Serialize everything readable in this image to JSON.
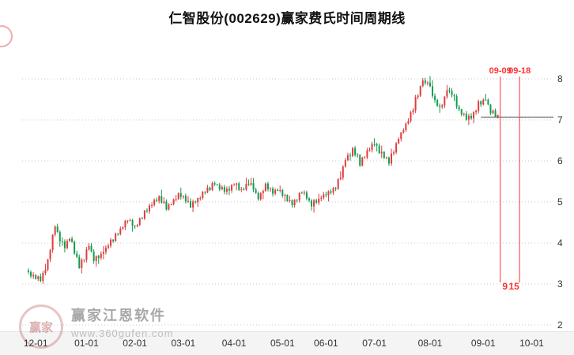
{
  "title": "仁智股份(002629)赢家费氏时间周期线",
  "watermark": {
    "brand": "赢家江恩软件",
    "url": "www.360gufen.com",
    "logo_text": "赢家"
  },
  "colors": {
    "up": "#e03c3c",
    "down": "#0f9d4e",
    "grid": "#c9c9c9",
    "fib": "#ff3232",
    "price_line": "#4a4a4a",
    "axis_text": "#333333",
    "title": "#111111"
  },
  "chart_data": {
    "type": "candlestick",
    "title": "仁智股份(002629)赢家费氏时间周期线",
    "xlabel": "",
    "ylabel": "",
    "y_axis_side": "right",
    "grid": "dotted-horizontal",
    "legend": "none",
    "y_ticks": [
      8,
      7,
      6,
      5,
      4,
      3,
      2
    ],
    "y_range": [
      1.94,
      9.06
    ],
    "n": 195,
    "x_ticks": [
      {
        "label": "12-01",
        "i": 3
      },
      {
        "label": "01-01",
        "i": 24
      },
      {
        "label": "02-01",
        "i": 44
      },
      {
        "label": "03-01",
        "i": 64
      },
      {
        "label": "04-01",
        "i": 85
      },
      {
        "label": "05-01",
        "i": 105
      },
      {
        "label": "06-01",
        "i": 123
      },
      {
        "label": "07-01",
        "i": 143
      },
      {
        "label": "08-01",
        "i": 166
      },
      {
        "label": "09-01",
        "i": 188
      },
      {
        "label": "10-01",
        "i": 208
      }
    ],
    "close_anchors": [
      [
        0,
        3.28
      ],
      [
        2,
        3.18
      ],
      [
        5,
        3.1
      ],
      [
        8,
        3.55
      ],
      [
        11,
        4.45
      ],
      [
        13,
        4.05
      ],
      [
        15,
        3.92
      ],
      [
        17,
        4.15
      ],
      [
        19,
        3.8
      ],
      [
        21,
        3.42
      ],
      [
        23,
        3.65
      ],
      [
        25,
        3.96
      ],
      [
        27,
        3.6
      ],
      [
        30,
        3.72
      ],
      [
        33,
        3.95
      ],
      [
        36,
        4.18
      ],
      [
        39,
        4.4
      ],
      [
        41,
        4.58
      ],
      [
        44,
        4.38
      ],
      [
        47,
        4.65
      ],
      [
        50,
        4.88
      ],
      [
        54,
        5.1
      ],
      [
        57,
        4.88
      ],
      [
        60,
        5.02
      ],
      [
        62,
        5.18
      ],
      [
        65,
        5.05
      ],
      [
        67,
        4.93
      ],
      [
        70,
        5.08
      ],
      [
        72,
        5.22
      ],
      [
        75,
        5.35
      ],
      [
        77,
        5.46
      ],
      [
        79,
        5.36
      ],
      [
        81,
        5.26
      ],
      [
        83,
        5.32
      ],
      [
        85,
        5.45
      ],
      [
        87,
        5.35
      ],
      [
        88,
        5.25
      ],
      [
        90,
        5.4
      ],
      [
        91,
        5.48
      ],
      [
        93,
        5.32
      ],
      [
        95,
        5.1
      ],
      [
        97,
        5.28
      ],
      [
        98,
        5.4
      ],
      [
        100,
        5.3
      ],
      [
        101,
        5.22
      ],
      [
        103,
        5.32
      ],
      [
        105,
        5.18
      ],
      [
        107,
        5.08
      ],
      [
        109,
        4.98
      ],
      [
        111,
        5.1
      ],
      [
        113,
        5.24
      ],
      [
        115,
        5.1
      ],
      [
        117,
        4.94
      ],
      [
        119,
        5.02
      ],
      [
        121,
        5.12
      ],
      [
        123,
        5.2
      ],
      [
        125,
        5.26
      ],
      [
        127,
        5.34
      ],
      [
        129,
        5.65
      ],
      [
        131,
        6.05
      ],
      [
        134,
        6.25
      ],
      [
        136,
        6.08
      ],
      [
        137,
        5.95
      ],
      [
        139,
        6.12
      ],
      [
        141,
        6.28
      ],
      [
        143,
        6.42
      ],
      [
        145,
        6.25
      ],
      [
        147,
        6.12
      ],
      [
        149,
        6.0
      ],
      [
        151,
        6.25
      ],
      [
        153,
        6.58
      ],
      [
        155,
        6.78
      ],
      [
        157,
        7.0
      ],
      [
        159,
        7.28
      ],
      [
        160,
        7.5
      ],
      [
        162,
        7.8
      ],
      [
        163,
        8.02
      ],
      [
        164,
        7.86
      ],
      [
        165,
        7.94
      ],
      [
        167,
        7.62
      ],
      [
        168,
        7.45
      ],
      [
        170,
        7.28
      ],
      [
        172,
        7.55
      ],
      [
        173,
        7.75
      ],
      [
        175,
        7.62
      ],
      [
        176,
        7.55
      ],
      [
        178,
        7.2
      ],
      [
        180,
        7.1
      ],
      [
        181,
        7.06
      ],
      [
        183,
        7.1
      ],
      [
        184,
        7.16
      ],
      [
        186,
        7.4
      ],
      [
        188,
        7.48
      ],
      [
        189,
        7.54
      ],
      [
        190,
        7.34
      ],
      [
        191,
        7.2
      ],
      [
        193,
        7.14
      ],
      [
        194,
        7.08
      ]
    ],
    "price_line": 7.07,
    "time_lines": [
      {
        "label": "09-09",
        "count": "9",
        "i": 195,
        "count_dx": 6
      },
      {
        "label": "09-18",
        "count": "15",
        "i": 203,
        "count_dx": -7
      }
    ]
  }
}
